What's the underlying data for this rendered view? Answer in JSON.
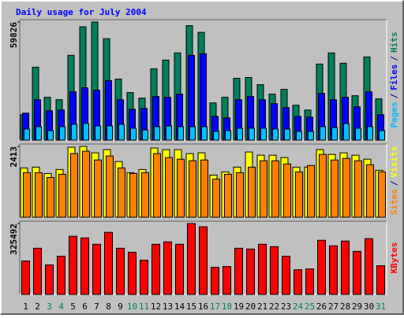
{
  "chart_data": [
    {
      "type": "bar",
      "title": "Daily usage for July 2004",
      "legend_separator": "/",
      "ylim": [
        0,
        59826
      ],
      "yticks": [
        59826
      ],
      "series": [
        {
          "name": "Hits",
          "color": "#00805c",
          "values": [
            12848,
            36938,
            21681,
            20477,
            42961,
            57415,
            59826,
            51392,
            30916,
            24090,
            21280,
            36135,
            40552,
            44165,
            58000,
            54604,
            18871,
            21681,
            31317,
            31719,
            28105,
            23287,
            25696,
            17666,
            15257,
            38544,
            44165,
            38946,
            22484,
            42158,
            20878
          ]
        },
        {
          "name": "Files",
          "color": "#0000ff",
          "values": [
            13651,
            20477,
            14856,
            15257,
            24492,
            26499,
            25295,
            30113,
            20477,
            15659,
            16060,
            22083,
            21681,
            23287,
            42961,
            43764,
            12045,
            11242,
            20477,
            22083,
            20477,
            18469,
            16462,
            12045,
            11644,
            23689,
            20477,
            21681,
            16863,
            24492,
            12848
          ]
        },
        {
          "name": "Pages",
          "color": "#00c0ff",
          "values": [
            5600,
            6800,
            4800,
            6800,
            8000,
            8400,
            7200,
            7200,
            8000,
            6000,
            5200,
            6800,
            7200,
            6800,
            6800,
            6800,
            4400,
            4800,
            6000,
            6000,
            6000,
            5600,
            5600,
            4400,
            4400,
            6800,
            6400,
            8400,
            6000,
            6800,
            4800
          ]
        }
      ]
    },
    {
      "type": "bar",
      "legend_separator": "/",
      "ylim": [
        0,
        2413
      ],
      "yticks": [
        2413
      ],
      "series": [
        {
          "name": "Visits",
          "color": "#ffff00",
          "values": [
            1680,
            1707,
            1490,
            1626,
            2385,
            2413,
            2195,
            2304,
            1897,
            1518,
            1626,
            2358,
            2304,
            2304,
            2168,
            2195,
            1436,
            1545,
            1707,
            2222,
            2114,
            2114,
            2033,
            1707,
            1707,
            2304,
            2141,
            2195,
            2114,
            1978,
            1599
          ]
        },
        {
          "name": "Sites",
          "color": "#ff8000",
          "values": [
            1518,
            1518,
            1355,
            1463,
            2168,
            2249,
            1951,
            2087,
            1680,
            1491,
            1518,
            2168,
            2033,
            1978,
            1924,
            1951,
            1301,
            1463,
            1518,
            1707,
            1924,
            1924,
            1816,
            1545,
            1762,
            2141,
            1951,
            2005,
            1924,
            1789,
            1545
          ]
        }
      ]
    },
    {
      "type": "bar",
      "ylim": [
        0,
        325492
      ],
      "yticks": [
        325492
      ],
      "categories": [
        "1",
        "2",
        "3",
        "4",
        "5",
        "6",
        "7",
        "8",
        "9",
        "10",
        "11",
        "12",
        "13",
        "14",
        "15",
        "16",
        "17",
        "18",
        "19",
        "20",
        "21",
        "22",
        "23",
        "24",
        "25",
        "26",
        "27",
        "28",
        "29",
        "30",
        "31"
      ],
      "category_colors": [
        "#000000",
        "#000000",
        "#00805c",
        "#00805c",
        "#000000",
        "#000000",
        "#000000",
        "#000000",
        "#000000",
        "#00805c",
        "#00805c",
        "#000000",
        "#000000",
        "#000000",
        "#000000",
        "#000000",
        "#00805c",
        "#00805c",
        "#000000",
        "#000000",
        "#000000",
        "#000000",
        "#000000",
        "#00805c",
        "#00805c",
        "#000000",
        "#000000",
        "#000000",
        "#000000",
        "#000000",
        "#00805c"
      ],
      "series": [
        {
          "name": "KBytes",
          "color": "#ff0000",
          "values": [
            153600,
            212100,
            135300,
            175500,
            267000,
            259600,
            230400,
            285200,
            212100,
            193800,
            157300,
            230400,
            241400,
            230400,
            325492,
            310800,
            124300,
            128000,
            212100,
            208400,
            230400,
            219400,
            175500,
            113400,
            117000,
            248700,
            223100,
            245000,
            197500,
            256000,
            131700
          ]
        }
      ]
    }
  ]
}
